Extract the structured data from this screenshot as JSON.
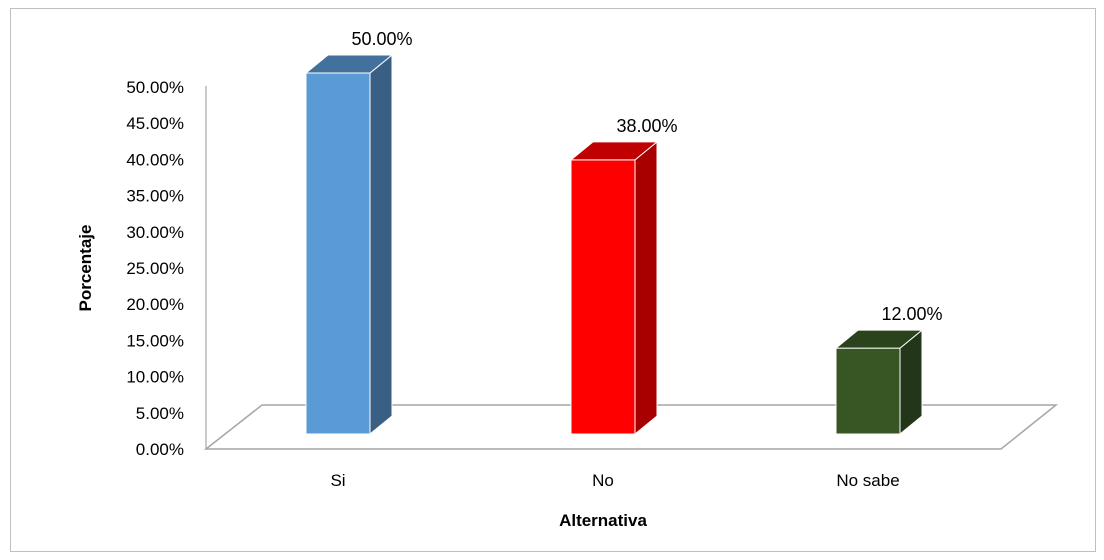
{
  "chart_data": {
    "type": "bar",
    "style": "3d-column",
    "categories": [
      "Si",
      "No",
      "No sabe"
    ],
    "values": [
      50.0,
      38.0,
      12.0
    ],
    "value_labels": [
      "50.00%",
      "38.00%",
      "12.00%"
    ],
    "colors": [
      "#5b9bd5",
      "#ff0000",
      "#375623"
    ],
    "side_colors": [
      "#3a5f84",
      "#a80000",
      "#22361a"
    ],
    "top_colors": [
      "#41719c",
      "#c00000",
      "#2b431c"
    ],
    "ylim": [
      0,
      50
    ],
    "y_ticks": [
      "0.00%",
      "5.00%",
      "10.00%",
      "15.00%",
      "20.00%",
      "25.00%",
      "30.00%",
      "35.00%",
      "40.00%",
      "45.00%",
      "50.00%"
    ],
    "xlabel": "Alternativa",
    "ylabel": "Porcentaje",
    "grid": false,
    "legend": "none"
  }
}
